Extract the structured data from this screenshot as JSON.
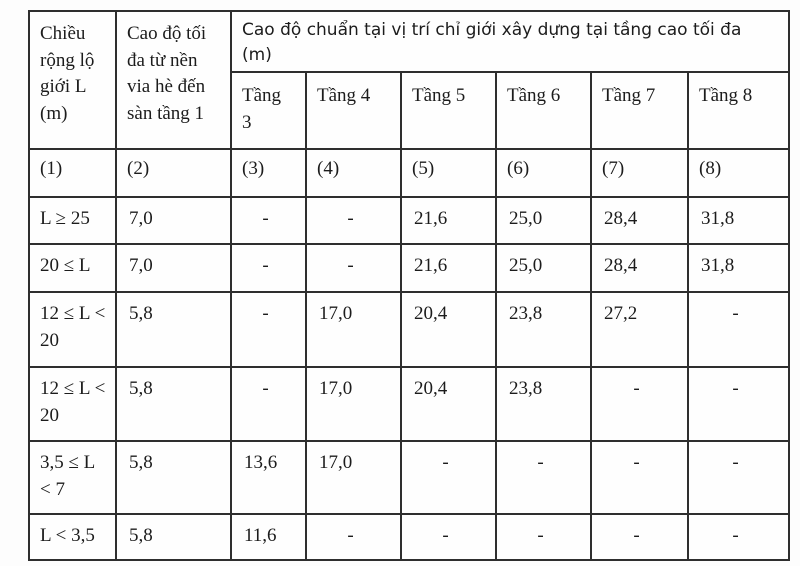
{
  "table": {
    "header": {
      "col1": "Chiều rộng lộ giới L (m)",
      "col2": "Cao độ tối đa từ nền via hè đến sàn tầng 1",
      "span": "Cao độ chuẩn tại vị trí chỉ giới xây dựng tại tầng cao tối đa (m)",
      "floors": [
        "Tầng 3",
        "Tầng 4",
        "Tầng 5",
        "Tầng 6",
        "Tầng 7",
        "Tầng 8"
      ],
      "indices": [
        "(1)",
        "(2)",
        "(3)",
        "(4)",
        "(5)",
        "(6)",
        "(7)",
        "(8)"
      ]
    },
    "rows": [
      [
        "L ≥ 25",
        "7,0",
        "-",
        "-",
        "21,6",
        "25,0",
        "28,4",
        "31,8"
      ],
      [
        "20 ≤ L",
        "7,0",
        "-",
        "-",
        "21,6",
        "25,0",
        "28,4",
        "31,8"
      ],
      [
        "12 ≤ L < 20",
        "5,8",
        "-",
        "17,0",
        "20,4",
        "23,8",
        "27,2",
        "-"
      ],
      [
        "12 ≤ L < 20",
        "5,8",
        "-",
        "17,0",
        "20,4",
        "23,8",
        "-",
        "-"
      ],
      [
        "3,5 ≤ L < 7",
        "5,8",
        "13,6",
        "17,0",
        "-",
        "-",
        "-",
        "-"
      ],
      [
        "L < 3,5",
        "5,8",
        "11,6",
        "-",
        "-",
        "-",
        "-",
        "-"
      ]
    ],
    "colors": {
      "border": "#2e2e2e",
      "background": "#fdfdfd",
      "text": "#1c1c1c"
    }
  }
}
